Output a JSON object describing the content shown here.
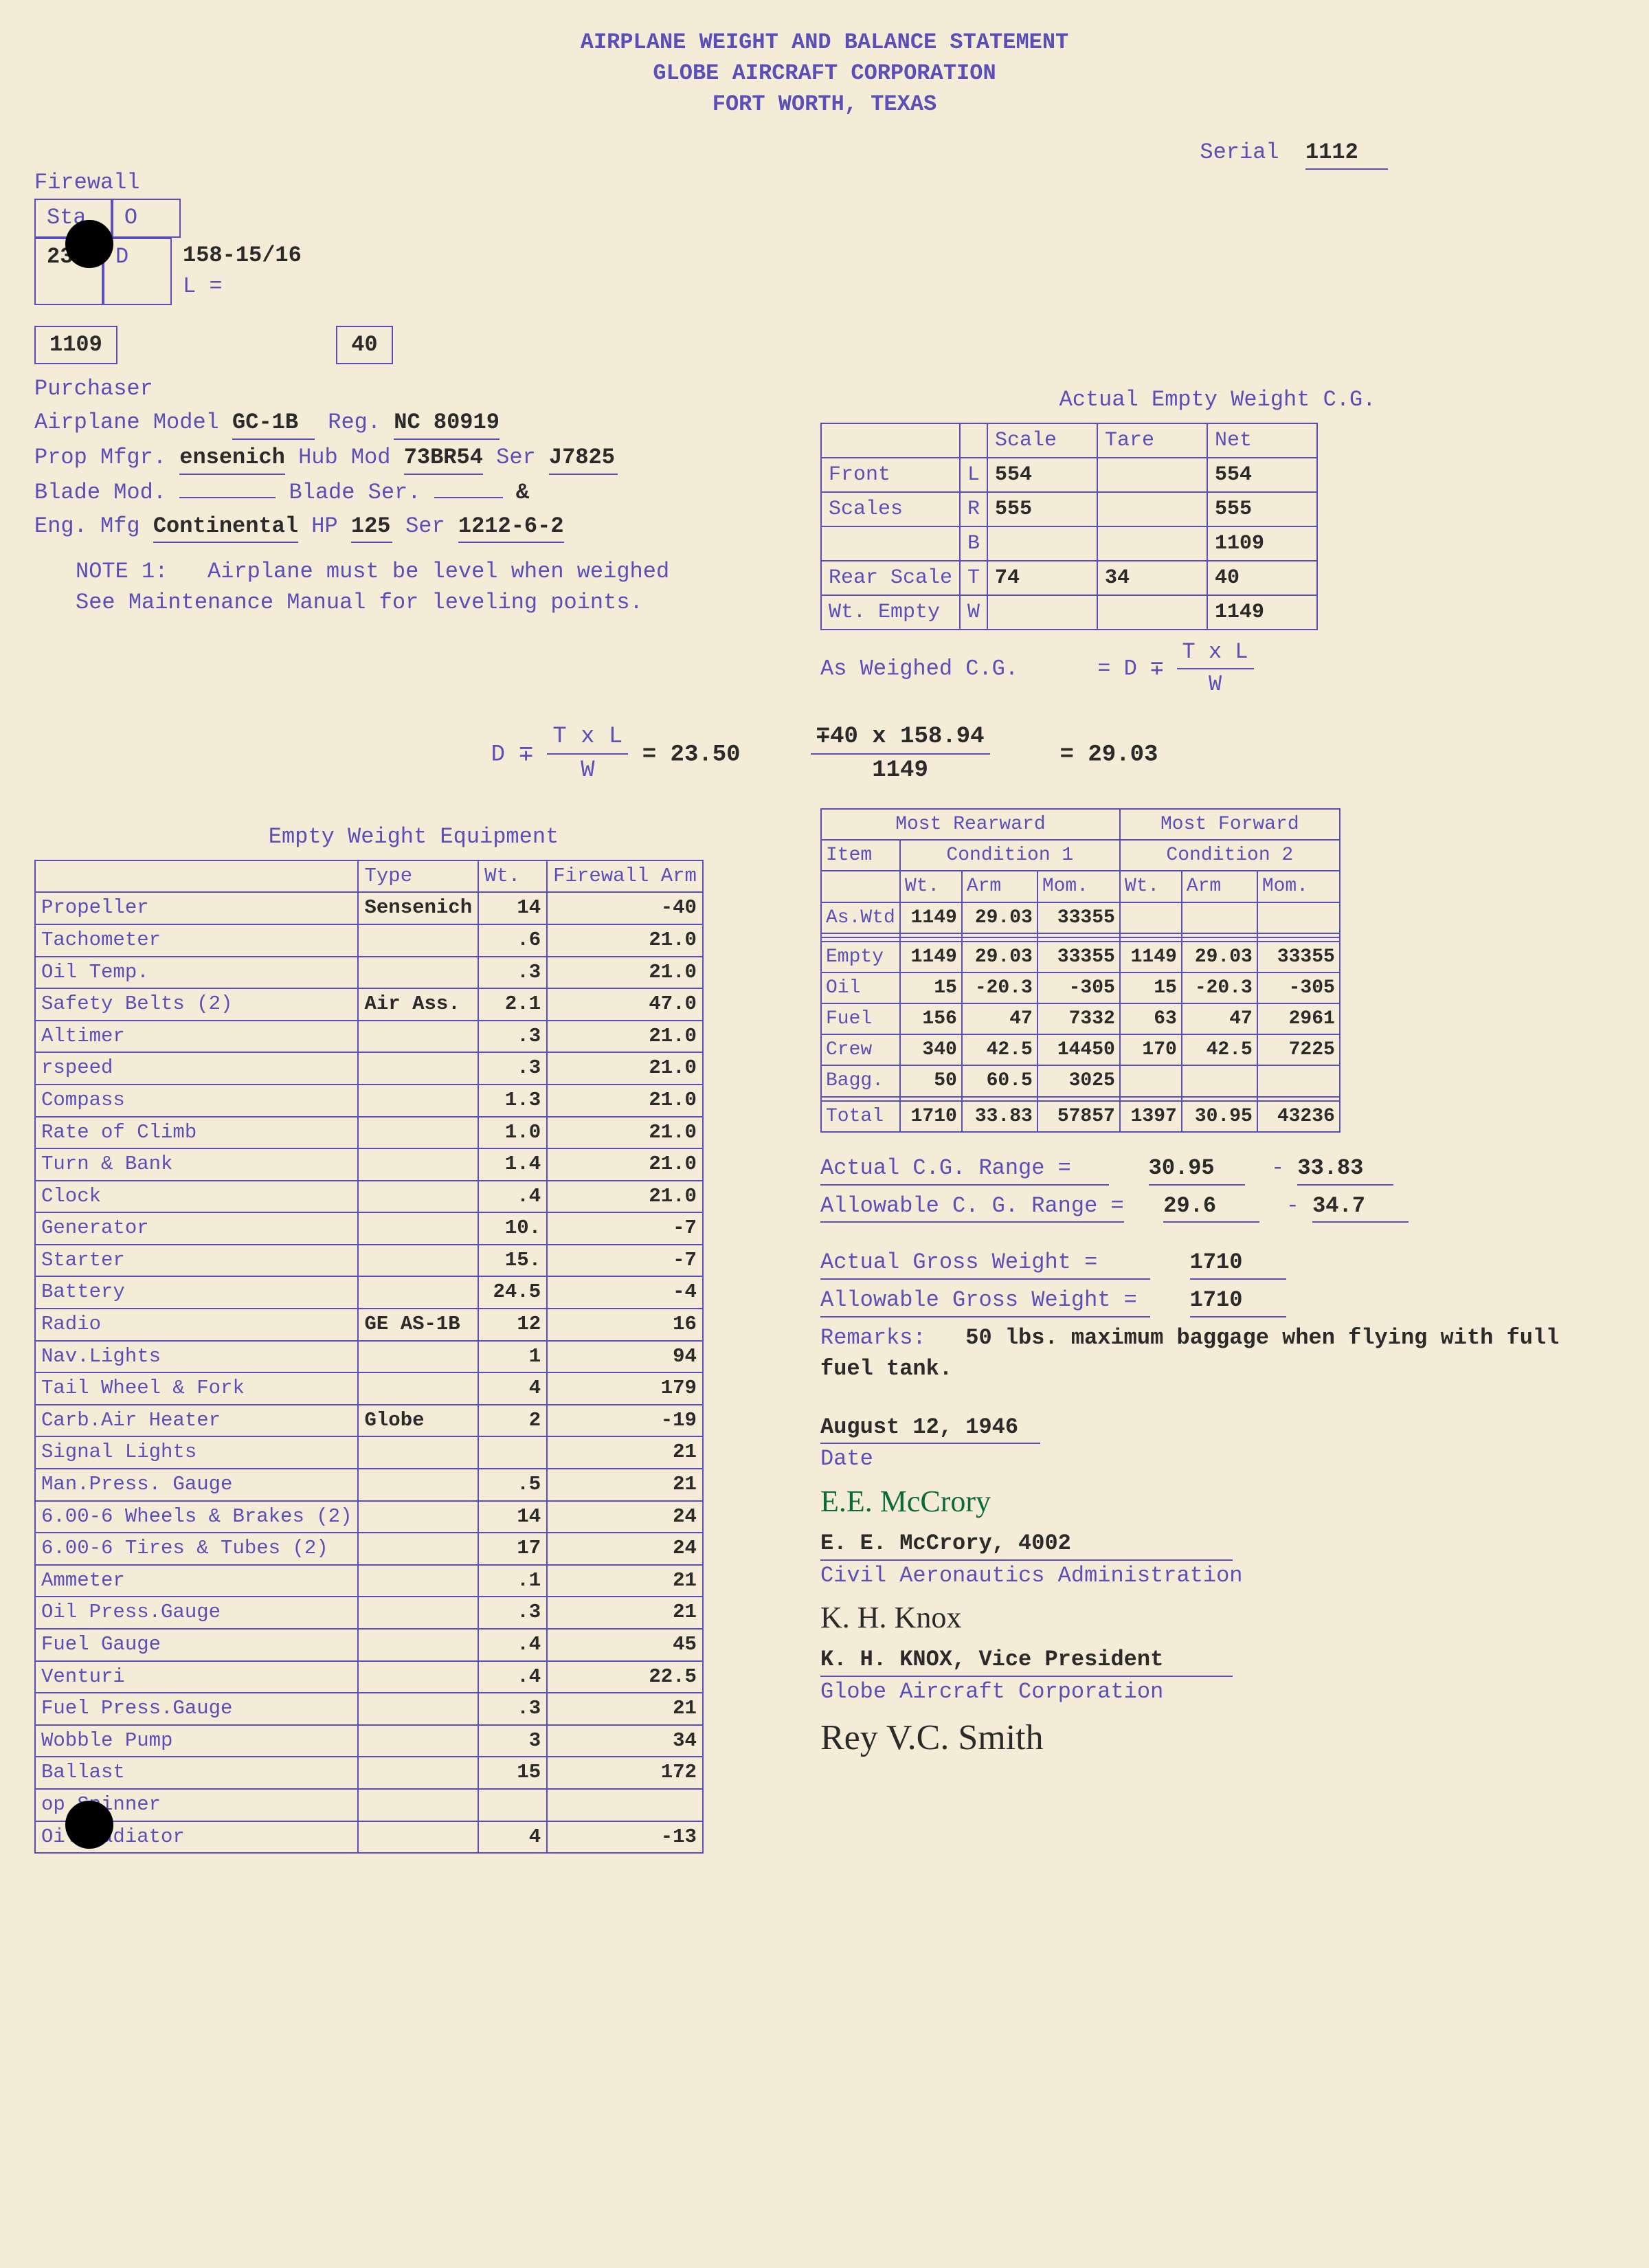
{
  "header": {
    "line1": "AIRPLANE WEIGHT AND BALANCE STATEMENT",
    "line2": "GLOBE AIRCRAFT CORPORATION",
    "line3": "FORT WORTH, TEXAS"
  },
  "serial_label": "Serial",
  "serial": "1112",
  "firewall": {
    "title": "Firewall",
    "sta_label": "Sta.",
    "sta": "23½",
    "o": "O",
    "d": "D",
    "val": "158-15/16",
    "l": "L ="
  },
  "box_a": "1109",
  "box_b": "40",
  "purchaser_label": "Purchaser",
  "info": {
    "model_label": "Airplane Model",
    "model": "GC-1B",
    "reg_label": "Reg.",
    "reg": "NC 80919",
    "prop_mfr_label": "Prop Mfgr.",
    "prop_mfr": "ensenich",
    "hub_mod_label": "Hub Mod",
    "hub_mod": "73BR54",
    "ser_label": "Ser",
    "prop_ser": "J7825",
    "blade_mod_label": "Blade Mod.",
    "blade_ser_label": "Blade Ser.",
    "amp": "&",
    "eng_mfg_label": "Eng. Mfg",
    "eng_mfg": "Continental",
    "hp_label": "HP",
    "hp": "125",
    "eng_ser": "1212-6-2"
  },
  "note1_label": "NOTE 1:",
  "note1": "Airplane must be level when weighed See Maintenance Manual for leveling points.",
  "cg_title": "Actual Empty Weight C.G.",
  "cg_table": {
    "headers": [
      "",
      "",
      "Scale",
      "Tare",
      "Net"
    ],
    "rows": [
      [
        "Front",
        "L",
        "554",
        "",
        "554"
      ],
      [
        "Scales",
        "R",
        "555",
        "",
        "555"
      ],
      [
        "",
        "B",
        "",
        "",
        "1109"
      ],
      [
        "Rear Scale",
        "T",
        "74",
        "34",
        "40"
      ],
      [
        "Wt. Empty",
        "W",
        "",
        "",
        "1149"
      ]
    ],
    "as_weighed": "As Weighed C.G.",
    "formula": "= D ∓",
    "frac_top": "T x L",
    "frac_bot": "W"
  },
  "calc": {
    "lhs": "D ∓",
    "frac_top": "T x L",
    "frac_bot": "W",
    "eq1": "= 23.50",
    "mid_top": "∓40 x 158.94",
    "mid_bot": "1149",
    "eq2": "= 29.03"
  },
  "equip_title": "Empty Weight Equipment",
  "equip_headers": [
    "",
    "Type",
    "Wt.",
    "Firewall Arm"
  ],
  "equip": [
    [
      "Propeller",
      "Sensenich",
      "14",
      "-40"
    ],
    [
      "Tachometer",
      "",
      ".6",
      "21.0"
    ],
    [
      "Oil Temp.",
      "",
      ".3",
      "21.0"
    ],
    [
      "Safety Belts (2)",
      "Air Ass.",
      "2.1",
      "47.0"
    ],
    [
      "Altimer",
      "",
      ".3",
      "21.0"
    ],
    [
      "  rspeed",
      "",
      ".3",
      "21.0"
    ],
    [
      "Compass",
      "",
      "1.3",
      "21.0"
    ],
    [
      "Rate of Climb",
      "",
      "1.0",
      "21.0"
    ],
    [
      "Turn & Bank",
      "",
      "1.4",
      "21.0"
    ],
    [
      "Clock",
      "",
      ".4",
      "21.0"
    ],
    [
      "Generator",
      "",
      "10.",
      "-7"
    ],
    [
      "Starter",
      "",
      "15.",
      "-7"
    ],
    [
      "Battery",
      "",
      "24.5",
      "-4"
    ],
    [
      "Radio",
      "GE AS-1B",
      "12",
      "16"
    ],
    [
      "Nav.Lights",
      "",
      "1",
      "94"
    ],
    [
      "Tail Wheel & Fork",
      "",
      "4",
      "179"
    ],
    [
      "Carb.Air Heater",
      "Globe",
      "2",
      "-19"
    ],
    [
      "Signal Lights",
      "",
      "",
      "21"
    ],
    [
      "Man.Press. Gauge",
      "",
      ".5",
      "21"
    ],
    [
      "6.00-6 Wheels & Brakes (2)",
      "",
      "14",
      "24"
    ],
    [
      "6.00-6 Tires & Tubes (2)",
      "",
      "17",
      "24"
    ],
    [
      "Ammeter",
      "",
      ".1",
      "21"
    ],
    [
      "Oil Press.Gauge",
      "",
      ".3",
      "21"
    ],
    [
      "Fuel Gauge",
      "",
      ".4",
      "45"
    ],
    [
      "Venturi",
      "",
      ".4",
      "22.5"
    ],
    [
      "Fuel Press.Gauge",
      "",
      ".3",
      "21"
    ],
    [
      "Wobble Pump",
      "",
      "3",
      "34"
    ],
    [
      "Ballast",
      "",
      "15",
      "172"
    ],
    [
      "  op Spinner",
      "",
      "",
      ""
    ],
    [
      "Oil Radiator",
      "",
      "4",
      "-13"
    ]
  ],
  "cond": {
    "rear_title": "Most Rearward",
    "fwd_title": "Most Forward",
    "item_label": "Item",
    "c1_label": "Condition 1",
    "c2_label": "Condition 2",
    "sub_headers": [
      "Wt.",
      "Arm",
      "Mom.",
      "Wt.",
      "Arm",
      "Mom."
    ],
    "rows": [
      [
        "As.Wtd",
        "1149",
        "29.03",
        "33355",
        "",
        "",
        ""
      ],
      [
        "",
        "",
        "",
        "",
        "",
        "",
        ""
      ],
      [
        "",
        "",
        "",
        "",
        "",
        "",
        ""
      ],
      [
        "Empty",
        "1149",
        "29.03",
        "33355",
        "1149",
        "29.03",
        "33355"
      ],
      [
        "Oil",
        "15",
        "-20.3",
        "-305",
        "15",
        "-20.3",
        "-305"
      ],
      [
        "Fuel",
        "156",
        "47",
        "7332",
        "63",
        "47",
        "2961"
      ],
      [
        "Crew",
        "340",
        "42.5",
        "14450",
        "170",
        "42.5",
        "7225"
      ],
      [
        "Bagg.",
        "50",
        "60.5",
        "3025",
        "",
        "",
        ""
      ],
      [
        "",
        "",
        "",
        "",
        "",
        "",
        ""
      ],
      [
        "Total",
        "1710",
        "33.83",
        "57857",
        "1397",
        "30.95",
        "43236"
      ]
    ]
  },
  "ranges": {
    "actual_cg_label": "Actual C.G. Range =",
    "actual_cg_lo": "30.95",
    "actual_cg_hi": "33.83",
    "allow_cg_label": "Allowable C. G. Range =",
    "allow_cg_lo": "29.6",
    "allow_cg_hi": "34.7",
    "actual_gw_label": "Actual Gross Weight    =",
    "actual_gw": "1710",
    "allow_gw_label": "Allowable Gross Weight =",
    "allow_gw": "1710",
    "remarks_label": "Remarks:",
    "remarks": "50 lbs. maximum baggage when flying with full fuel tank."
  },
  "date_label": "Date",
  "date": "August 12, 1946",
  "sig1_script": "E.E. McCrory",
  "sig1_name": "E. E. McCrory, 4002",
  "sig1_org": "Civil Aeronautics Administration",
  "sig2_script": "K. H. Knox",
  "sig2_name": "K. H. KNOX, Vice President",
  "sig2_org": "Globe Aircraft Corporation",
  "sig3_script": "Rey V.C. Smith"
}
